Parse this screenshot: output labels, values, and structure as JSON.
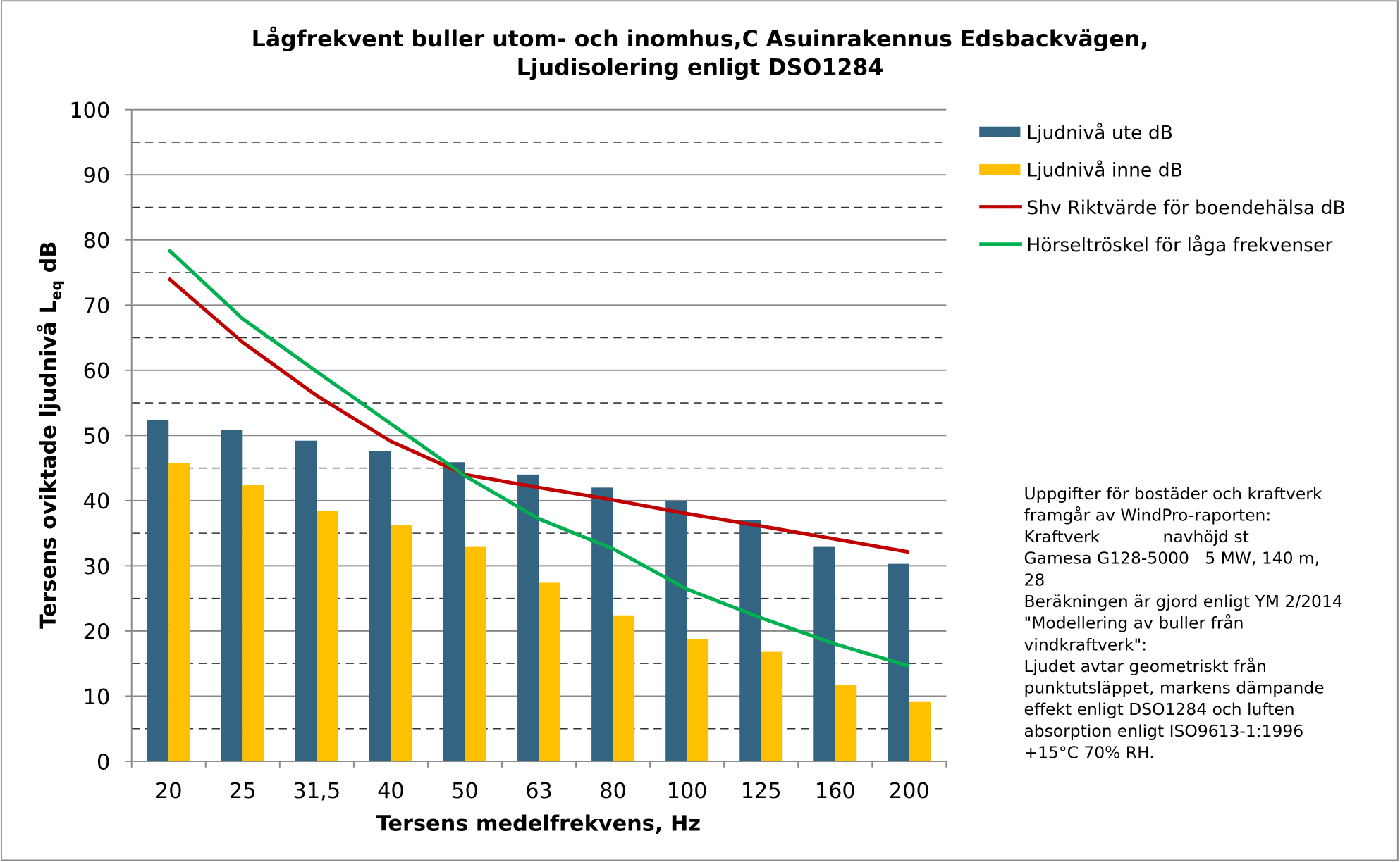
{
  "chart_data": {
    "type": "bar_line",
    "title": [
      "Lågfrekvent buller utom- och inomhus,C Asuinrakennus Edsbackvägen,",
      "Ljudisolering enligt DSO1284"
    ],
    "xlabel": "Tersens medelfrekvens, Hz",
    "ylabel": [
      "Tersens oviktade ljudnivå L",
      "eq",
      " dB"
    ],
    "categories": [
      "20",
      "25",
      "31,5",
      "40",
      "50",
      "63",
      "80",
      "100",
      "125",
      "160",
      "200"
    ],
    "series": [
      {
        "name": "Ljudnivå ute dB",
        "kind": "bar",
        "color": "#336482",
        "values": [
          52.4,
          50.8,
          49.2,
          47.6,
          45.9,
          44,
          42,
          40,
          37,
          32.9,
          30.3
        ]
      },
      {
        "name": "Ljudnivå inne dB",
        "kind": "bar",
        "color": "#ffc000",
        "values": [
          45.8,
          42.4,
          38.4,
          36.2,
          32.9,
          27.4,
          22.4,
          18.7,
          16.8,
          11.7,
          9.1
        ]
      },
      {
        "name": "Shv Riktvärde för boendehälsa dB",
        "kind": "line",
        "color": "#c00000",
        "values": [
          74.1,
          64.3,
          56.1,
          49.1,
          44,
          42,
          40.1,
          38,
          36.1,
          34.1,
          32.1
        ]
      },
      {
        "name": "Hörseltröskel för låga frekvenser",
        "kind": "line",
        "color": "#00b050",
        "values": [
          78.5,
          67.9,
          59.8,
          51.8,
          43.8,
          37.2,
          32.6,
          26.4,
          22,
          18,
          14.6
        ]
      }
    ],
    "ylim": [
      0,
      100
    ],
    "yticks": [
      0,
      10,
      20,
      30,
      40,
      50,
      60,
      70,
      80,
      90,
      100
    ],
    "minor_yticks": [
      5,
      15,
      25,
      35,
      45,
      55,
      65,
      75,
      85,
      95
    ],
    "grid": true,
    "legend": "right",
    "annotation": [
      "Uppgifter för bostäder och kraftverk",
      "framgår av WindPro-raporten:",
      "Kraftverk            navhöjd st",
      "Gamesa G128-5000   5 MW, 140 m,",
      "28",
      "Beräkningen är gjord enligt YM 2/2014",
      "\"Modellering av buller från",
      "vindkraftverk\":",
      "Ljudet avtar geometriskt från",
      "punktutsläppet, markens dämpande",
      "effekt enligt DSO1284 och luften",
      "absorption enligt ISO9613-1:1996",
      "+15°C 70% RH."
    ]
  }
}
